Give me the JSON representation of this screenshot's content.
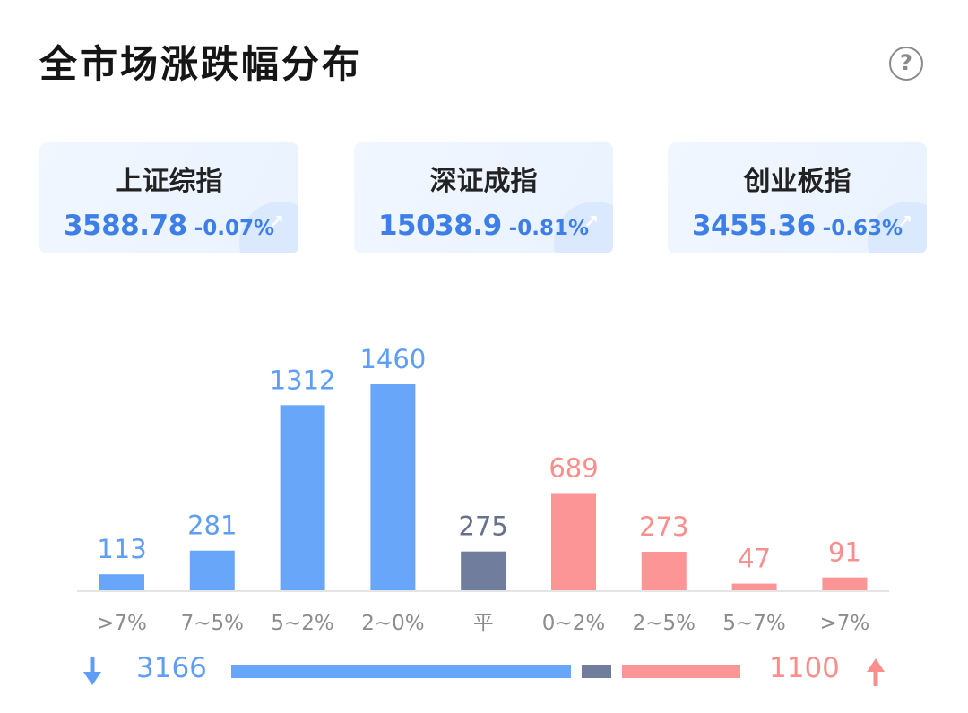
{
  "header": {
    "title": "全市场涨跌幅分布",
    "help_icon": "?"
  },
  "indices": [
    {
      "name": "上证综指",
      "value": "3588.78",
      "change": "-0.07%",
      "trend_icon": "trend-up-icon"
    },
    {
      "name": "深证成指",
      "value": "15038.9",
      "change": "-0.81%",
      "trend_icon": "trend-up-icon"
    },
    {
      "name": "创业板指",
      "value": "3455.36",
      "change": "-0.63%",
      "trend_icon": "trend-up-icon"
    }
  ],
  "colors": {
    "fall": "#68a6fa",
    "flat": "#707d9c",
    "rise": "#fb9596",
    "fall_text": "#5f9ef5",
    "rise_text": "#f98f8d",
    "flat_text": "#68718a",
    "axis_label": "#8c8c8c",
    "index_text": "#3d7fe6"
  },
  "chart_data": {
    "type": "bar",
    "categories": [
      ">7%",
      "7~5%",
      "5~2%",
      "2~0%",
      "平",
      "0~2%",
      "2~5%",
      "5~7%",
      ">7%"
    ],
    "values": [
      113,
      281,
      1312,
      1460,
      275,
      689,
      273,
      47,
      91
    ],
    "groups": [
      "fall",
      "fall",
      "fall",
      "fall",
      "flat",
      "rise",
      "rise",
      "rise",
      "rise"
    ],
    "ylim": [
      0,
      1460
    ],
    "grid": false,
    "legend": "none",
    "title": "",
    "xlabel": "",
    "ylabel": ""
  },
  "summary": {
    "fall_count": "3166",
    "flat_count": 275,
    "rise_count": "1100",
    "down_icon": "arrow-down-icon",
    "up_icon": "arrow-up-icon"
  }
}
